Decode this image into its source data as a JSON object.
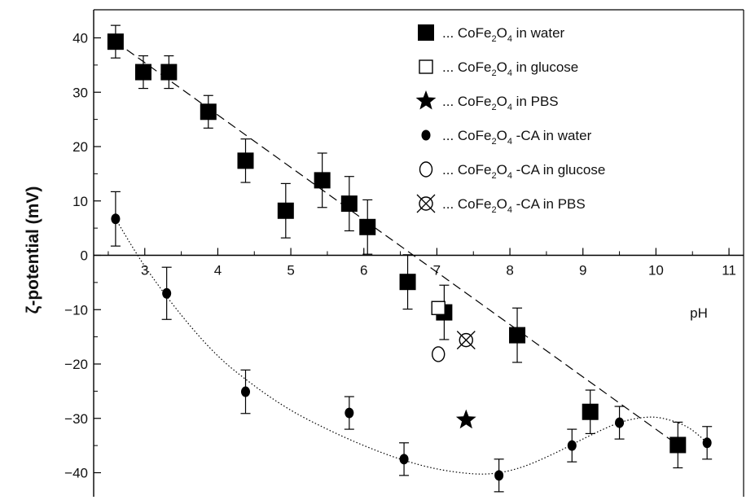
{
  "chart_data": {
    "type": "scatter",
    "title": "",
    "xlabel": "pH",
    "ylabel": "ζ-potential (mV)",
    "xlim": [
      2.3,
      11.2
    ],
    "ylim": [
      -44,
      45
    ],
    "x_ticks": [
      3,
      4,
      5,
      6,
      7,
      8,
      9,
      10,
      11
    ],
    "y_ticks": [
      40,
      30,
      20,
      10,
      0,
      -10,
      -20,
      -30,
      -40
    ],
    "x_tick_labels": [
      "3",
      "4",
      "5",
      "6",
      "7",
      "8",
      "9",
      "10",
      "11"
    ],
    "y_tick_labels": [
      "40",
      "30",
      "20",
      "10",
      "0",
      "−10",
      "−20",
      "−30",
      "−40"
    ],
    "grid": false,
    "legend_position": "top-right",
    "series": [
      {
        "name": "CoFe2O4 in water",
        "legend_parts": [
          "... CoFe",
          "2",
          "O",
          "4",
          " in water"
        ],
        "marker": "filled-square",
        "fit_line": "dashed",
        "points": [
          {
            "x": 2.6,
            "y": 39.3,
            "err": 3.0
          },
          {
            "x": 2.98,
            "y": 33.7,
            "err": 3.0
          },
          {
            "x": 3.33,
            "y": 33.7,
            "err": 3.0
          },
          {
            "x": 3.87,
            "y": 26.4,
            "err": 3.0
          },
          {
            "x": 4.38,
            "y": 17.4,
            "err": 4.0
          },
          {
            "x": 4.93,
            "y": 8.2,
            "err": 5.0
          },
          {
            "x": 5.43,
            "y": 13.8,
            "err": 5.0
          },
          {
            "x": 5.8,
            "y": 9.5,
            "err": 5.0
          },
          {
            "x": 6.05,
            "y": 5.2,
            "err": 5.0
          },
          {
            "x": 6.6,
            "y": -4.9,
            "err": 5.0
          },
          {
            "x": 7.1,
            "y": -10.5,
            "err": 5.0
          },
          {
            "x": 8.1,
            "y": -14.7,
            "err": 5.0
          },
          {
            "x": 9.1,
            "y": -28.8,
            "err": 4.0
          },
          {
            "x": 10.3,
            "y": -34.9,
            "err": 4.2
          }
        ]
      },
      {
        "name": "CoFe2O4 in glucose",
        "legend_parts": [
          "... CoFe",
          "2",
          "O",
          "4",
          " in glucose"
        ],
        "marker": "open-square",
        "points": [
          {
            "x": 7.02,
            "y": -9.7
          }
        ]
      },
      {
        "name": "CoFe2O4 in PBS",
        "legend_parts": [
          "... CoFe",
          "2",
          "O",
          "4",
          " in PBS"
        ],
        "marker": "star",
        "points": [
          {
            "x": 7.4,
            "y": -30.3
          }
        ]
      },
      {
        "name": "CoFe2O4 -CA in water",
        "legend_parts": [
          "... CoFe",
          "2",
          "O",
          "4",
          " -CA in water"
        ],
        "marker": "filled-circle",
        "fit_line": "dotted",
        "points": [
          {
            "x": 2.6,
            "y": 6.7,
            "err": 5.0
          },
          {
            "x": 3.3,
            "y": -7.0,
            "err": 4.8
          },
          {
            "x": 4.38,
            "y": -25.1,
            "err": 4.0
          },
          {
            "x": 5.8,
            "y": -29.0,
            "err": 3.0
          },
          {
            "x": 6.55,
            "y": -37.5,
            "err": 3.0
          },
          {
            "x": 7.85,
            "y": -40.5,
            "err": 3.0
          },
          {
            "x": 8.85,
            "y": -35.0,
            "err": 3.0
          },
          {
            "x": 9.5,
            "y": -30.8,
            "err": 3.0
          },
          {
            "x": 10.7,
            "y": -34.5,
            "err": 3.0
          }
        ],
        "fit_points": [
          [
            2.6,
            6.7
          ],
          [
            3.0,
            -2.0
          ],
          [
            3.5,
            -11.0
          ],
          [
            4.0,
            -18.5
          ],
          [
            4.5,
            -24.0
          ],
          [
            5.0,
            -28.5
          ],
          [
            5.5,
            -32.0
          ],
          [
            6.0,
            -35.0
          ],
          [
            6.5,
            -37.5
          ],
          [
            7.0,
            -39.3
          ],
          [
            7.5,
            -40.2
          ],
          [
            7.85,
            -40.0
          ],
          [
            8.2,
            -38.8
          ],
          [
            8.6,
            -36.5
          ],
          [
            9.0,
            -33.8
          ],
          [
            9.4,
            -31.3
          ],
          [
            9.7,
            -30.1
          ],
          [
            10.0,
            -29.8
          ],
          [
            10.3,
            -30.8
          ],
          [
            10.5,
            -32.2
          ],
          [
            10.7,
            -34.5
          ]
        ]
      },
      {
        "name": "CoFe2O4 -CA in glucose",
        "legend_parts": [
          "... CoFe",
          "2",
          "O",
          "4",
          " -CA in glucose"
        ],
        "marker": "open-circle",
        "points": [
          {
            "x": 7.02,
            "y": -18.2
          }
        ]
      },
      {
        "name": "CoFe2O4 -CA in PBS",
        "legend_parts": [
          "... CoFe",
          "2",
          "O",
          "4",
          " -CA in PBS"
        ],
        "marker": "crossed-circle",
        "points": [
          {
            "x": 7.4,
            "y": -15.6
          }
        ]
      }
    ],
    "colors": {
      "ink": "#000000",
      "background": "#ffffff"
    }
  }
}
